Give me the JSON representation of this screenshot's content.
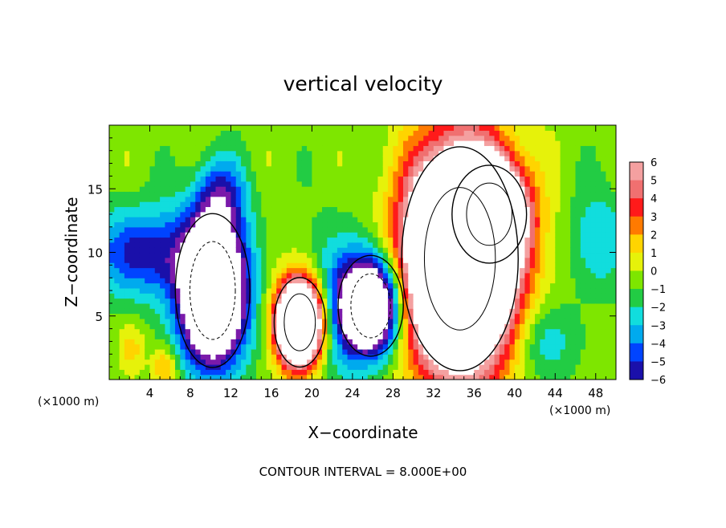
{
  "chart_data": {
    "type": "heatmap",
    "title": "vertical velocity",
    "xlabel": "X−coordinate",
    "ylabel": "Z−coordinate",
    "x_unit_left": "(×1000 m)",
    "x_unit_right": "(×1000 m)",
    "footer": "CONTOUR INTERVAL = 8.000E+00",
    "xlim": [
      0,
      50
    ],
    "ylim": [
      0,
      20
    ],
    "x_ticks": [
      4,
      8,
      12,
      16,
      20,
      24,
      28,
      32,
      36,
      40,
      44,
      48
    ],
    "x_tick_labels": [
      "4",
      "8",
      "12",
      "16",
      "20",
      "24",
      "28",
      "32",
      "36",
      "40",
      "44",
      "48"
    ],
    "y_ticks": [
      5,
      10,
      15
    ],
    "y_tick_labels": [
      "5",
      "10",
      "15"
    ],
    "colorbar": {
      "levels": [
        6,
        5,
        4,
        3,
        2,
        1,
        0,
        -1,
        -2,
        -3,
        -4,
        -5,
        -6
      ],
      "labels": [
        "6",
        "5",
        "4",
        "3",
        "2",
        "1",
        "0",
        "−1",
        "−2",
        "−3",
        "−4",
        "−5",
        "−6"
      ],
      "colors": [
        "#f4a0a0",
        "#f07070",
        "#ff1a1a",
        "#ff7a00",
        "#ffd400",
        "#e6f20a",
        "#7ee600",
        "#22cc44",
        "#11dddd",
        "#00aaee",
        "#0044ff",
        "#1a10aa",
        "#7a1aaa"
      ]
    },
    "grid": false,
    "legend": "right",
    "features": [
      {
        "kind": "updraft",
        "x": 18.8,
        "z": 4.5,
        "rx": 2.2,
        "rz": 3.2,
        "peak": 20
      },
      {
        "kind": "updraft",
        "x": 34.6,
        "z": 9.5,
        "rx": 5.0,
        "rz": 8.0,
        "peak": 24
      },
      {
        "kind": "updraft",
        "x": 37.5,
        "z": 13.0,
        "rx": 3.2,
        "rz": 3.5,
        "peak": 14
      },
      {
        "kind": "downdraft",
        "x": 10.2,
        "z": 7.0,
        "rx": 3.2,
        "rz": 5.5,
        "peak": -16
      },
      {
        "kind": "downdraft",
        "x": 25.8,
        "z": 5.8,
        "rx": 2.8,
        "rz": 3.6,
        "peak": -14
      },
      {
        "kind": "downdraft",
        "x": 3.0,
        "z": 10.0,
        "rx": 5.0,
        "rz": 3.5,
        "peak": -5
      },
      {
        "kind": "downdraft",
        "x": 11.0,
        "z": 14.5,
        "rx": 2.5,
        "rz": 3.0,
        "peak": -4
      },
      {
        "kind": "downdraft",
        "x": 22.5,
        "z": 6.0,
        "rx": 3.0,
        "rz": 6.0,
        "peak": -3
      },
      {
        "kind": "downdraft",
        "x": 48.5,
        "z": 11.0,
        "rx": 3.0,
        "rz": 4.0,
        "peak": -2.5
      },
      {
        "kind": "downdraft",
        "x": 43.0,
        "z": 3.0,
        "rx": 3.0,
        "rz": 3.0,
        "peak": -2.5
      },
      {
        "kind": "updraft",
        "x": 5.5,
        "z": 1.0,
        "rx": 1.2,
        "rz": 1.5,
        "peak": 3
      },
      {
        "kind": "updraft",
        "x": 2.2,
        "z": 2.5,
        "rx": 1.2,
        "rz": 2.0,
        "peak": 2
      }
    ]
  }
}
